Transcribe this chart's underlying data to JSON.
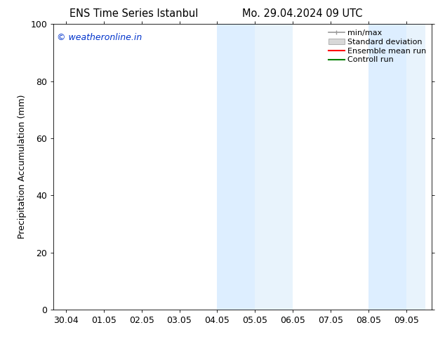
{
  "title_left": "ENS Time Series Istanbul",
  "title_right": "Mo. 29.04.2024 09 UTC",
  "ylabel": "Precipitation Accumulation (mm)",
  "ylim": [
    0,
    100
  ],
  "yticks": [
    0,
    20,
    40,
    60,
    80,
    100
  ],
  "xlabel": "",
  "watermark": "© weatheronline.in",
  "watermark_color": "#0033cc",
  "bg_color": "#ffffff",
  "plot_bg_color": "#ffffff",
  "shaded_bands": [
    {
      "x_start": 4.0,
      "x_end": 5.0,
      "color": "#ddeeff"
    },
    {
      "x_start": 5.0,
      "x_end": 6.0,
      "color": "#e8f3fc"
    },
    {
      "x_start": 8.0,
      "x_end": 9.0,
      "color": "#ddeeff"
    },
    {
      "x_start": 9.0,
      "x_end": 9.5,
      "color": "#e8f3fc"
    }
  ],
  "x_tick_labels": [
    "30.04",
    "01.05",
    "02.05",
    "03.05",
    "04.05",
    "05.05",
    "06.05",
    "07.05",
    "08.05",
    "09.05"
  ],
  "x_tick_positions": [
    0,
    1,
    2,
    3,
    4,
    5,
    6,
    7,
    8,
    9
  ],
  "xlim": [
    -0.33,
    9.67
  ],
  "legend_labels": [
    "min/max",
    "Standard deviation",
    "Ensemble mean run",
    "Controll run"
  ],
  "legend_colors": [
    "#999999",
    "#bbbbbb",
    "#ff0000",
    "#008000"
  ],
  "font_size": 9,
  "title_font_size": 10.5,
  "watermark_font_size": 9
}
